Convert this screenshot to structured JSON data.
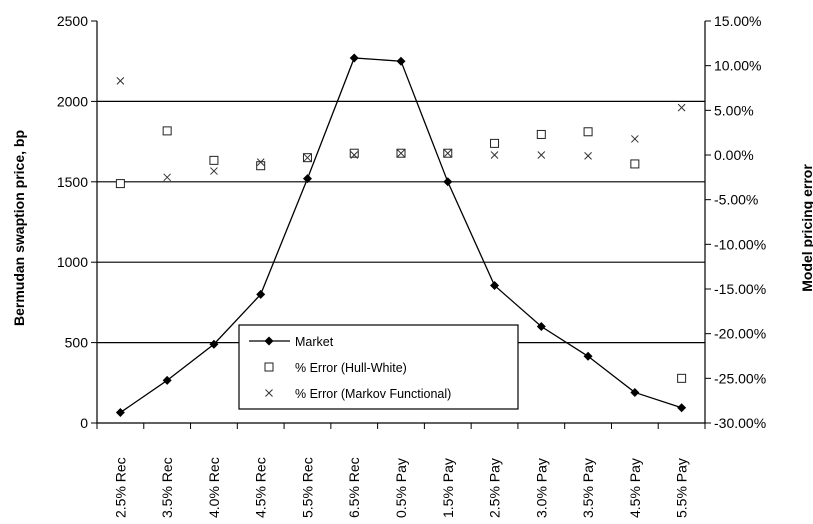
{
  "chart_data": {
    "type": "line",
    "categories": [
      "2.5% Rec",
      "3.5% Rec",
      "4.0% Rec",
      "4.5% Rec",
      "5.5% Rec",
      "6.5% Rec",
      "0.5% Pay",
      "1.5% Pay",
      "2.5% Pay",
      "3.0% Pay",
      "3.5% Pay",
      "4.5% Pay",
      "5.5% Pay"
    ],
    "ylabel": "Bermudan swaption price, bp",
    "y2label": "Model pricing error",
    "ylim": [
      0,
      2500
    ],
    "y2lim": [
      -0.3,
      0.15
    ],
    "yticks": [
      "0",
      "500",
      "1000",
      "1500",
      "2000",
      "2500"
    ],
    "y2ticks": [
      "-30.00%",
      "-25.00%",
      "-20.00%",
      "-15.00%",
      "-10.00%",
      "-5.00%",
      "0.00%",
      "5.00%",
      "10.00%",
      "15.00%"
    ],
    "grid": "horizontal major lines on left axis",
    "legend_position": "bottom-center",
    "series": [
      {
        "name": "Market",
        "axis": "left",
        "marker": "diamond",
        "line": true,
        "values": [
          65,
          265,
          490,
          800,
          1520,
          2270,
          2250,
          1500,
          855,
          600,
          415,
          190,
          95
        ]
      },
      {
        "name": "% Error (Hull-White)",
        "axis": "right",
        "marker": "square",
        "line": false,
        "values": [
          -0.032,
          0.027,
          -0.006,
          -0.012,
          -0.003,
          0.002,
          0.002,
          0.002,
          0.013,
          0.023,
          0.026,
          -0.01,
          -0.25
        ]
      },
      {
        "name": "% Error (Markov Functional)",
        "axis": "right",
        "marker": "x",
        "line": false,
        "values": [
          0.083,
          -0.025,
          -0.018,
          -0.008,
          -0.003,
          0.0,
          0.002,
          0.002,
          0.0,
          0.0,
          -0.001,
          0.018,
          0.053
        ]
      }
    ]
  }
}
